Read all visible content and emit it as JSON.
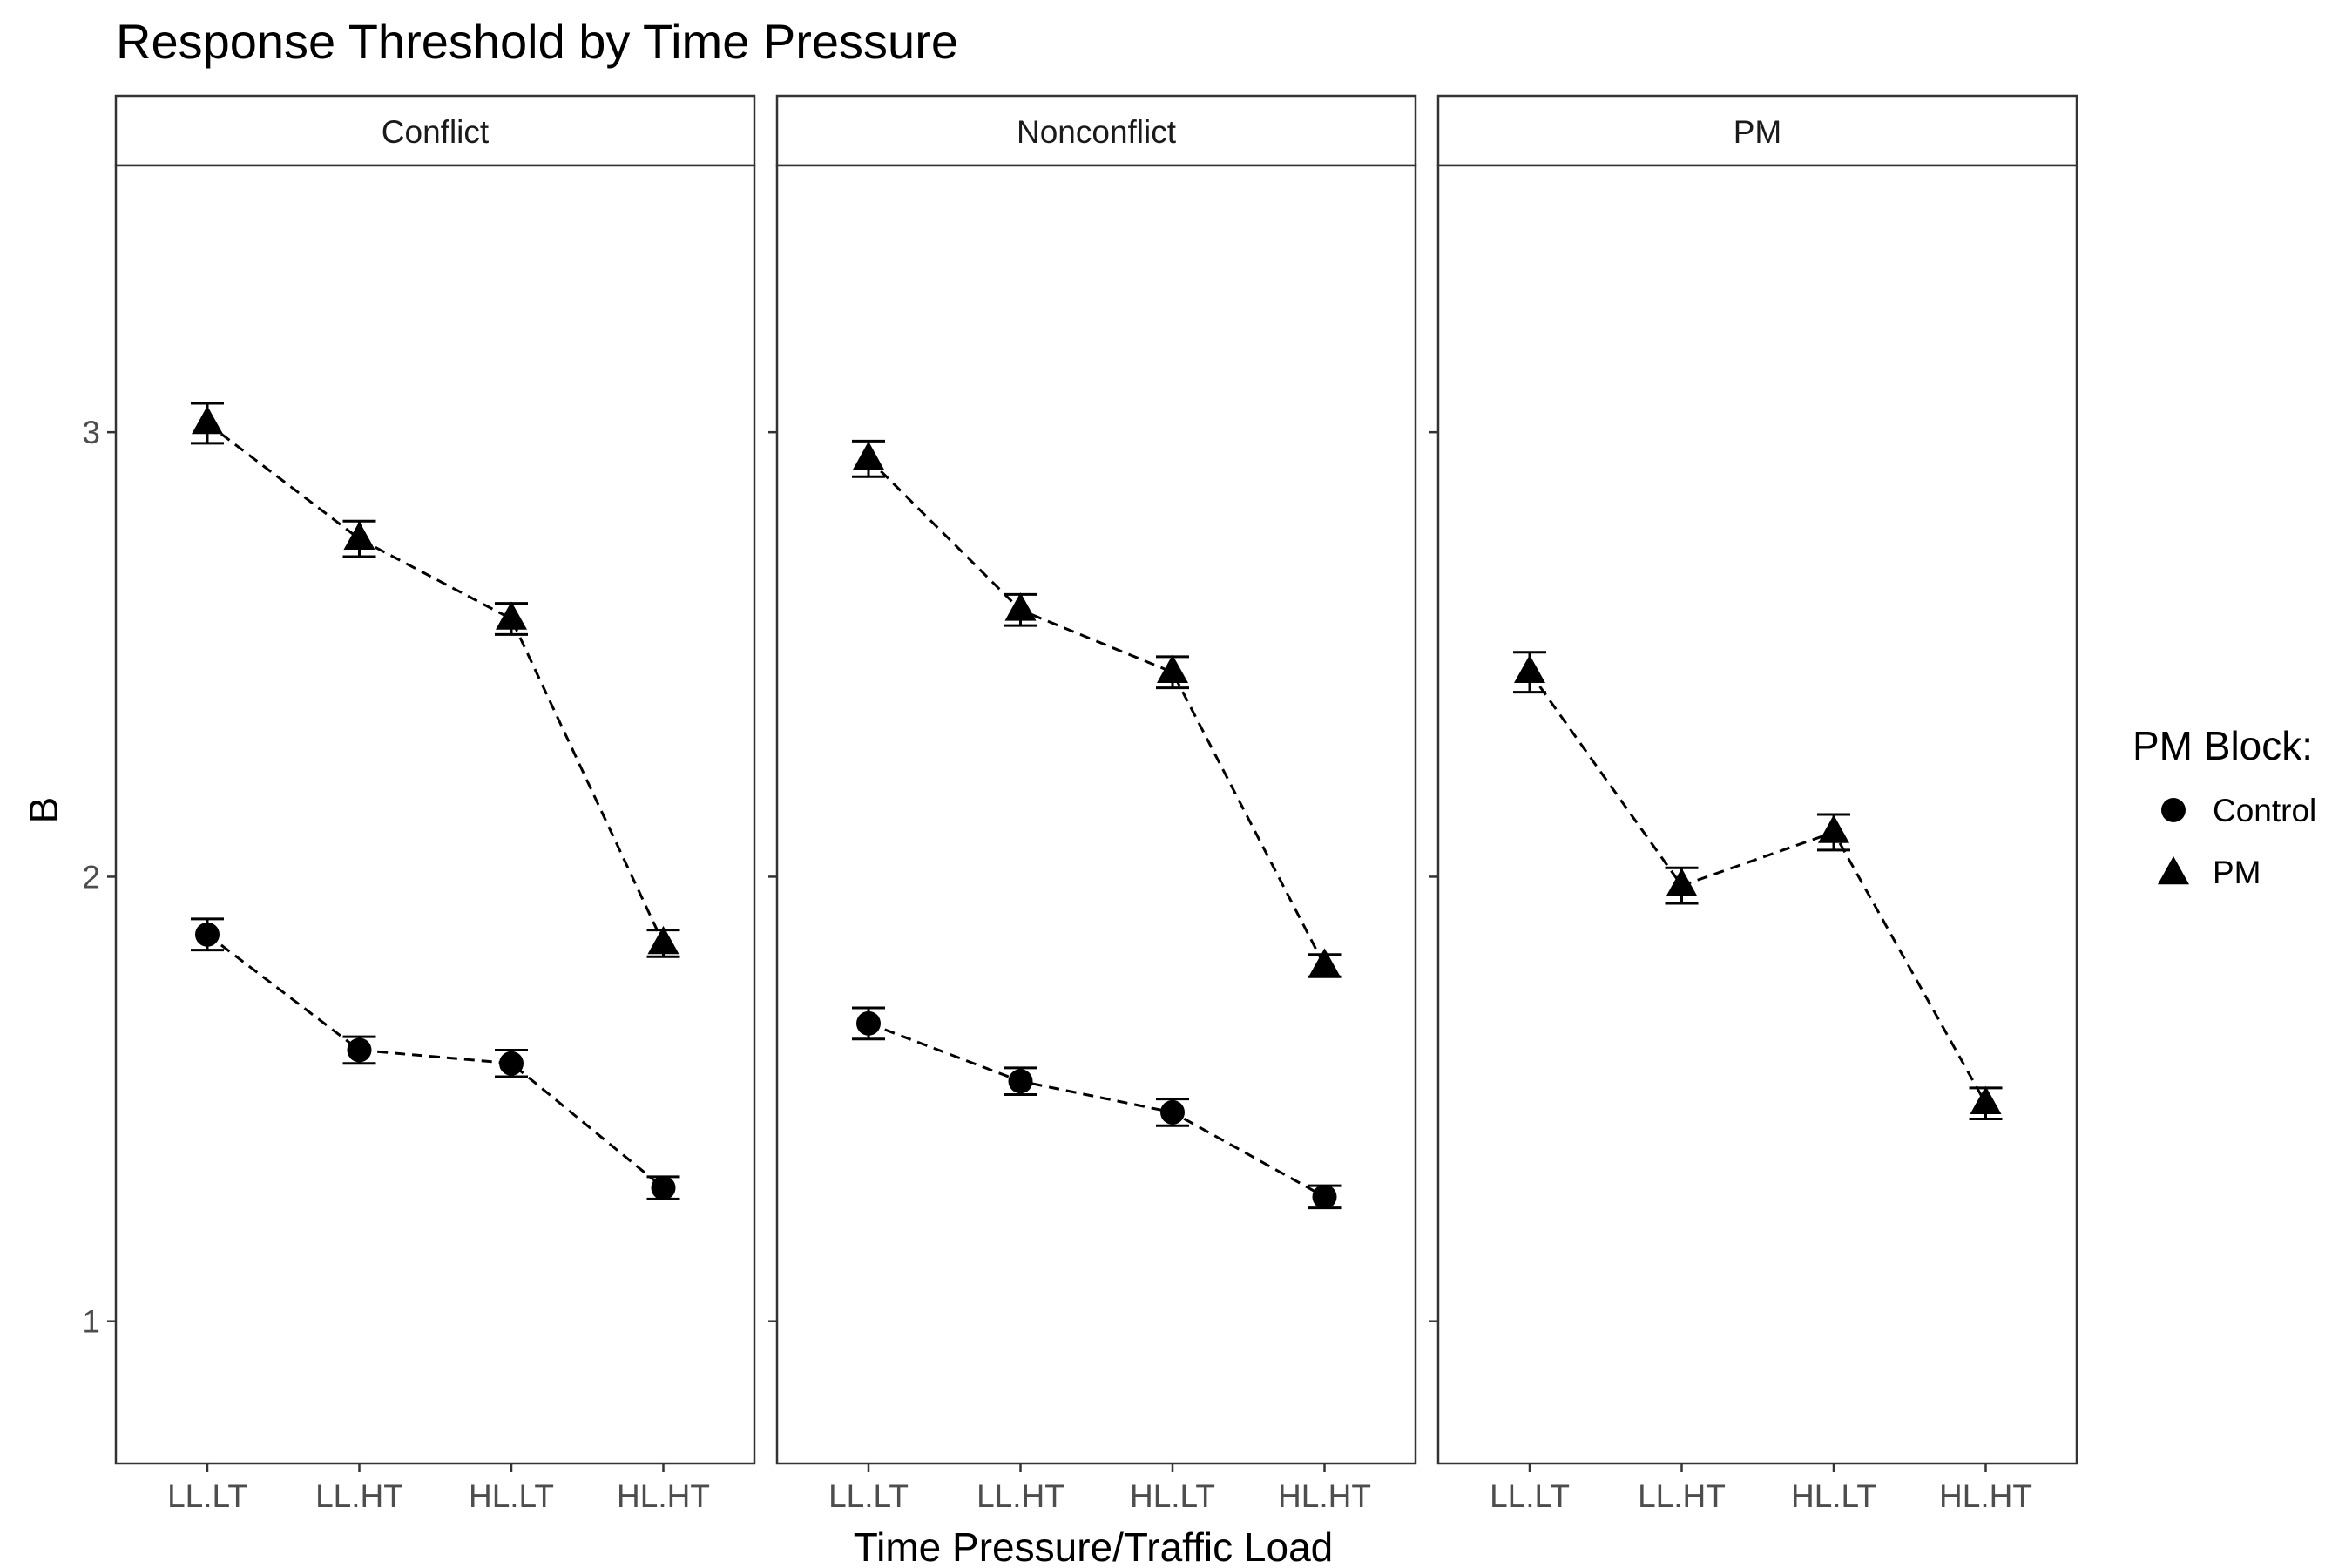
{
  "chart_data": {
    "type": "line",
    "title": "Response Threshold by Time Pressure",
    "xlabel": "Time Pressure/Traffic Load",
    "ylabel": "B",
    "categories": [
      "LL.LT",
      "LL.HT",
      "HL.LT",
      "HL.HT"
    ],
    "ylim": [
      0.68,
      3.6
    ],
    "yticks": [
      1,
      2,
      3
    ],
    "grid": false,
    "legend": {
      "title": "PM Block:",
      "position": "right",
      "entries": [
        {
          "label": "Control",
          "shape": "circle"
        },
        {
          "label": "PM",
          "shape": "triangle"
        }
      ]
    },
    "panels": [
      {
        "label": "Conflict",
        "series": [
          {
            "name": "Control",
            "shape": "circle",
            "values": [
              1.87,
              1.61,
              1.58,
              1.3
            ],
            "err": [
              0.035,
              0.03,
              0.03,
              0.025
            ]
          },
          {
            "name": "PM",
            "shape": "triangle",
            "values": [
              3.02,
              2.76,
              2.58,
              1.85
            ],
            "err": [
              0.045,
              0.04,
              0.035,
              0.03
            ]
          }
        ]
      },
      {
        "label": "Nonconflict",
        "series": [
          {
            "name": "Control",
            "shape": "circle",
            "values": [
              1.67,
              1.54,
              1.47,
              1.28
            ],
            "err": [
              0.035,
              0.03,
              0.03,
              0.025
            ]
          },
          {
            "name": "PM",
            "shape": "triangle",
            "values": [
              2.94,
              2.6,
              2.46,
              1.8
            ],
            "err": [
              0.04,
              0.035,
              0.035,
              0.025
            ]
          }
        ]
      },
      {
        "label": "PM",
        "series": [
          {
            "name": "PM",
            "shape": "triangle",
            "values": [
              2.46,
              1.98,
              2.1,
              1.49
            ],
            "err": [
              0.045,
              0.04,
              0.04,
              0.035
            ]
          }
        ]
      }
    ]
  }
}
